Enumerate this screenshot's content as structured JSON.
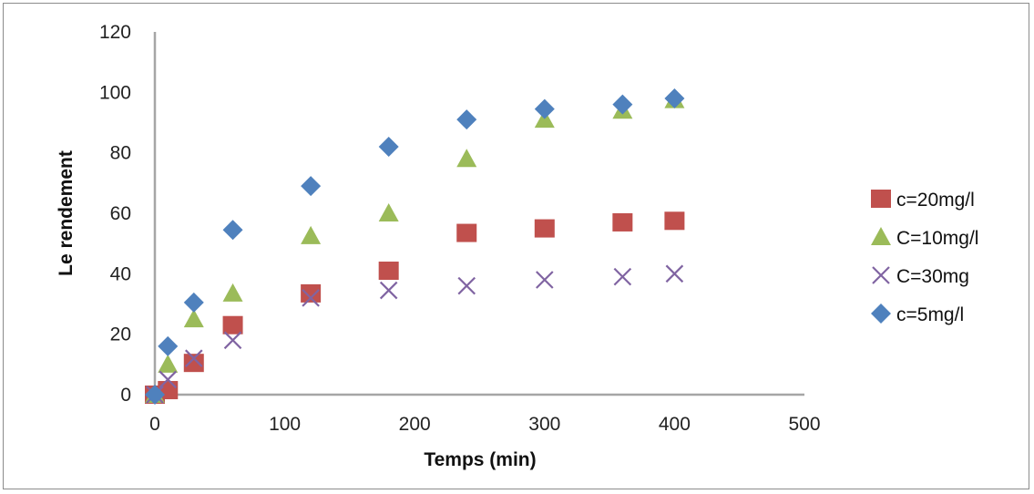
{
  "chart_data": {
    "type": "scatter",
    "title": "",
    "xlabel": "Temps (min)",
    "ylabel": "Le rendement",
    "xlim": [
      0,
      500
    ],
    "ylim": [
      0,
      120
    ],
    "xticks": [
      0,
      100,
      200,
      300,
      400,
      500
    ],
    "yticks": [
      0,
      20,
      40,
      60,
      80,
      100,
      120
    ],
    "grid": false,
    "legend_position": "right",
    "series": [
      {
        "name": "c=20mg/l",
        "marker": "square",
        "color": "#c0504d",
        "x": [
          0,
          10,
          30,
          60,
          120,
          180,
          240,
          300,
          360,
          400
        ],
        "y": [
          0,
          1.5,
          10.5,
          23,
          33.5,
          41,
          53.5,
          55,
          57,
          57.5
        ]
      },
      {
        "name": "C=10mg/l",
        "marker": "triangle",
        "color": "#9bbb59",
        "x": [
          0,
          10,
          30,
          60,
          120,
          180,
          240,
          300,
          360,
          400
        ],
        "y": [
          0,
          10,
          25,
          33.5,
          52.5,
          60,
          78,
          91,
          94,
          97.5
        ]
      },
      {
        "name": "C=30mg",
        "marker": "x",
        "color": "#8064a2",
        "x": [
          0,
          10,
          30,
          60,
          120,
          180,
          240,
          300,
          360,
          400
        ],
        "y": [
          0,
          5,
          12,
          18,
          32,
          34.5,
          36,
          38,
          39,
          40
        ]
      },
      {
        "name": "c=5mg/l",
        "marker": "diamond",
        "color": "#4f81bd",
        "x": [
          0,
          10,
          30,
          60,
          120,
          180,
          240,
          300,
          360,
          400
        ],
        "y": [
          0,
          16,
          30.5,
          54.5,
          69,
          82,
          91,
          94.5,
          96,
          98
        ]
      }
    ]
  }
}
